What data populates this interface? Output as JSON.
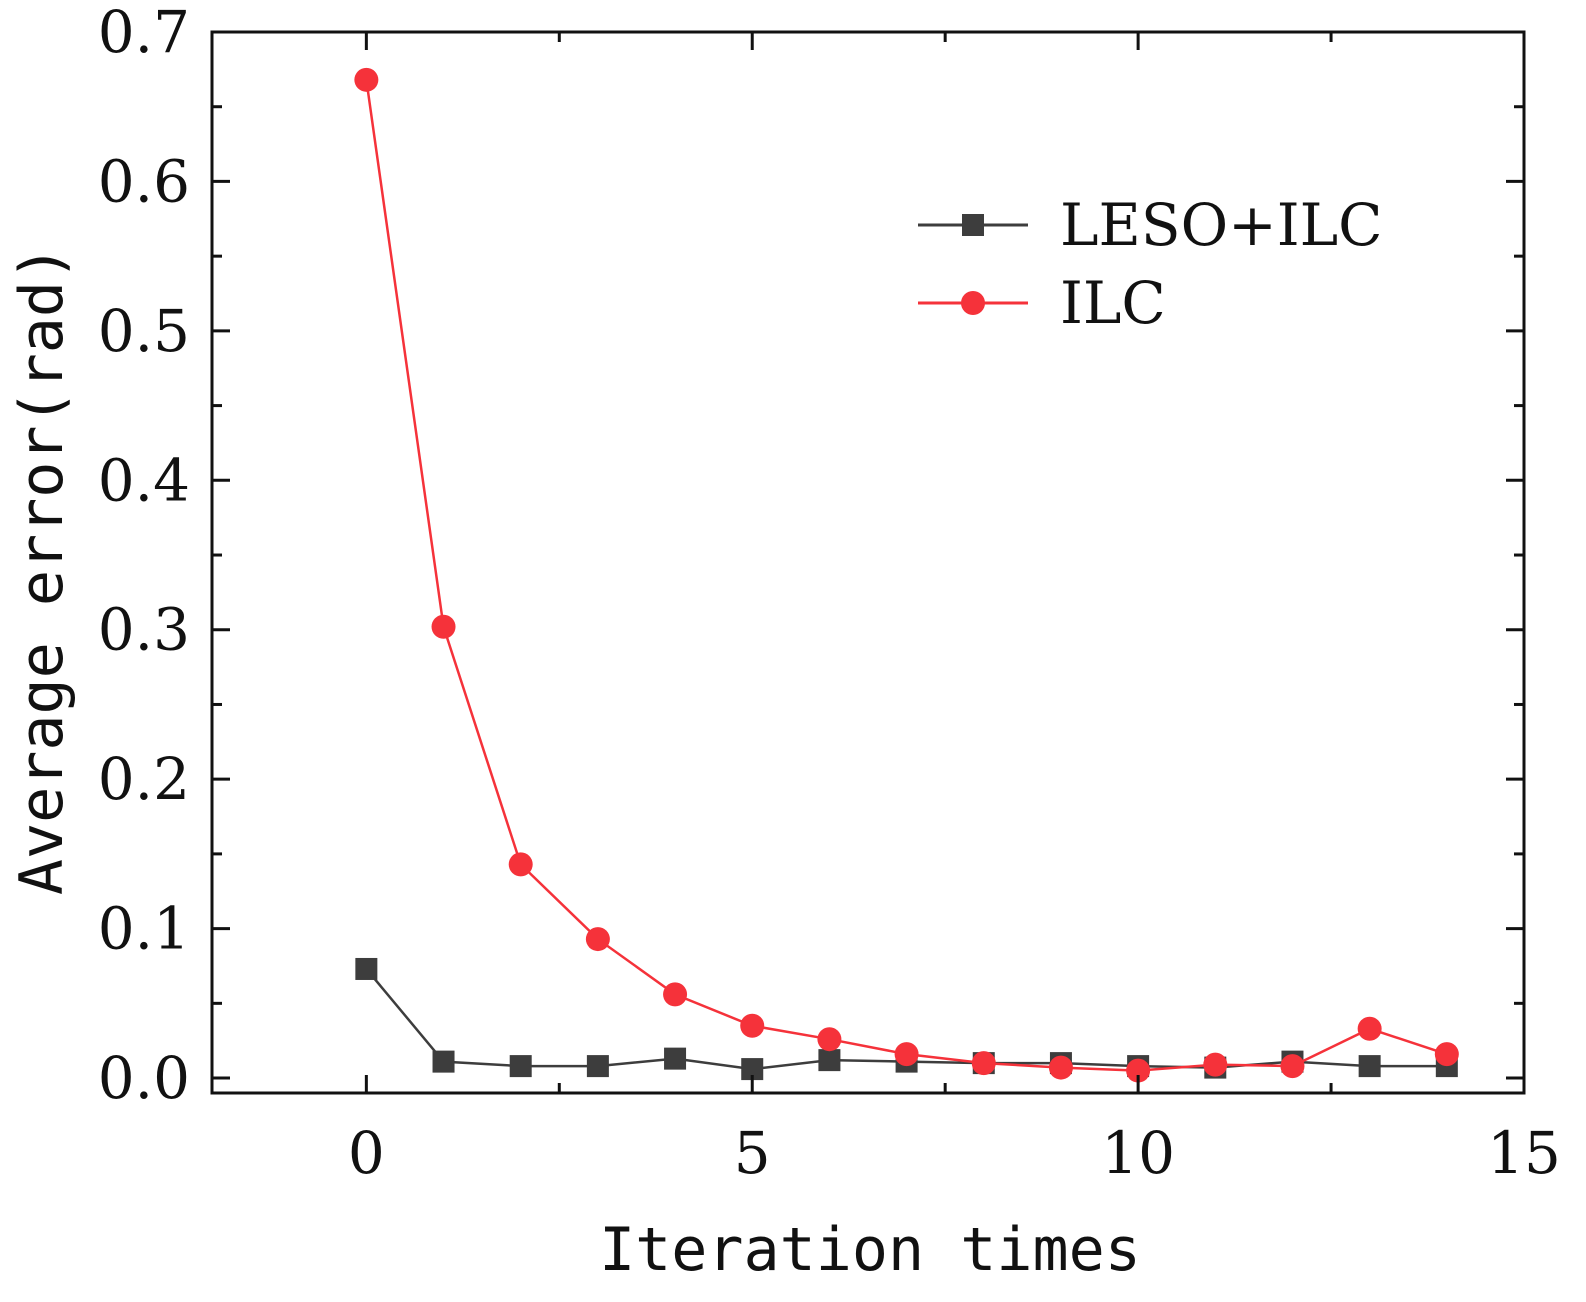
{
  "chart_data": {
    "type": "line",
    "title": "",
    "xlabel": "Iteration times",
    "ylabel": "Average error(rad)",
    "xlim": [
      -2,
      15
    ],
    "ylim": [
      -0.01,
      0.7
    ],
    "xticks": [
      0,
      5,
      10,
      15
    ],
    "xtick_labels": [
      "0",
      "5",
      "10",
      "15"
    ],
    "yticks": [
      0.0,
      0.1,
      0.2,
      0.3,
      0.4,
      0.5,
      0.6,
      0.7
    ],
    "ytick_labels": [
      "0.0",
      "0.1",
      "0.2",
      "0.3",
      "0.4",
      "0.5",
      "0.6",
      "0.7"
    ],
    "grid": false,
    "legend_position": "top-right",
    "series": [
      {
        "name": "LESO+ILC",
        "color": "#3d3d3d",
        "marker": "square",
        "x": [
          0,
          1,
          2,
          3,
          4,
          5,
          6,
          7,
          8,
          9,
          10,
          11,
          12,
          13,
          14
        ],
        "values": [
          0.073,
          0.011,
          0.008,
          0.008,
          0.013,
          0.006,
          0.012,
          0.011,
          0.01,
          0.01,
          0.008,
          0.007,
          0.011,
          0.008,
          0.008
        ]
      },
      {
        "name": "ILC",
        "color": "#f5323a",
        "marker": "circle",
        "x": [
          0,
          1,
          2,
          3,
          4,
          5,
          6,
          7,
          8,
          9,
          10,
          11,
          12,
          13,
          14
        ],
        "values": [
          0.668,
          0.302,
          0.143,
          0.093,
          0.056,
          0.035,
          0.026,
          0.016,
          0.01,
          0.007,
          0.005,
          0.009,
          0.008,
          0.033,
          0.016
        ]
      }
    ]
  }
}
